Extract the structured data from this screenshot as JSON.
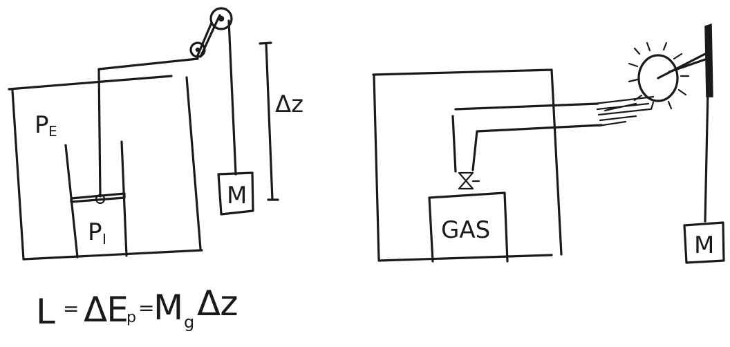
{
  "left_diagram": {
    "outer_pressure_label": "P",
    "outer_pressure_sub": "E",
    "inner_pressure_label": "P",
    "inner_pressure_sub": "I",
    "mass_label": "M",
    "height_label": "Δz"
  },
  "right_diagram": {
    "gas_label": "GAS",
    "mass_label": "M"
  },
  "equation": {
    "L": "L",
    "eq1": "=",
    "dEp": "ΔE",
    "p_sub": "p",
    "eq2": "=",
    "M": "M",
    "g_sub": "g",
    "dz": "Δz"
  }
}
